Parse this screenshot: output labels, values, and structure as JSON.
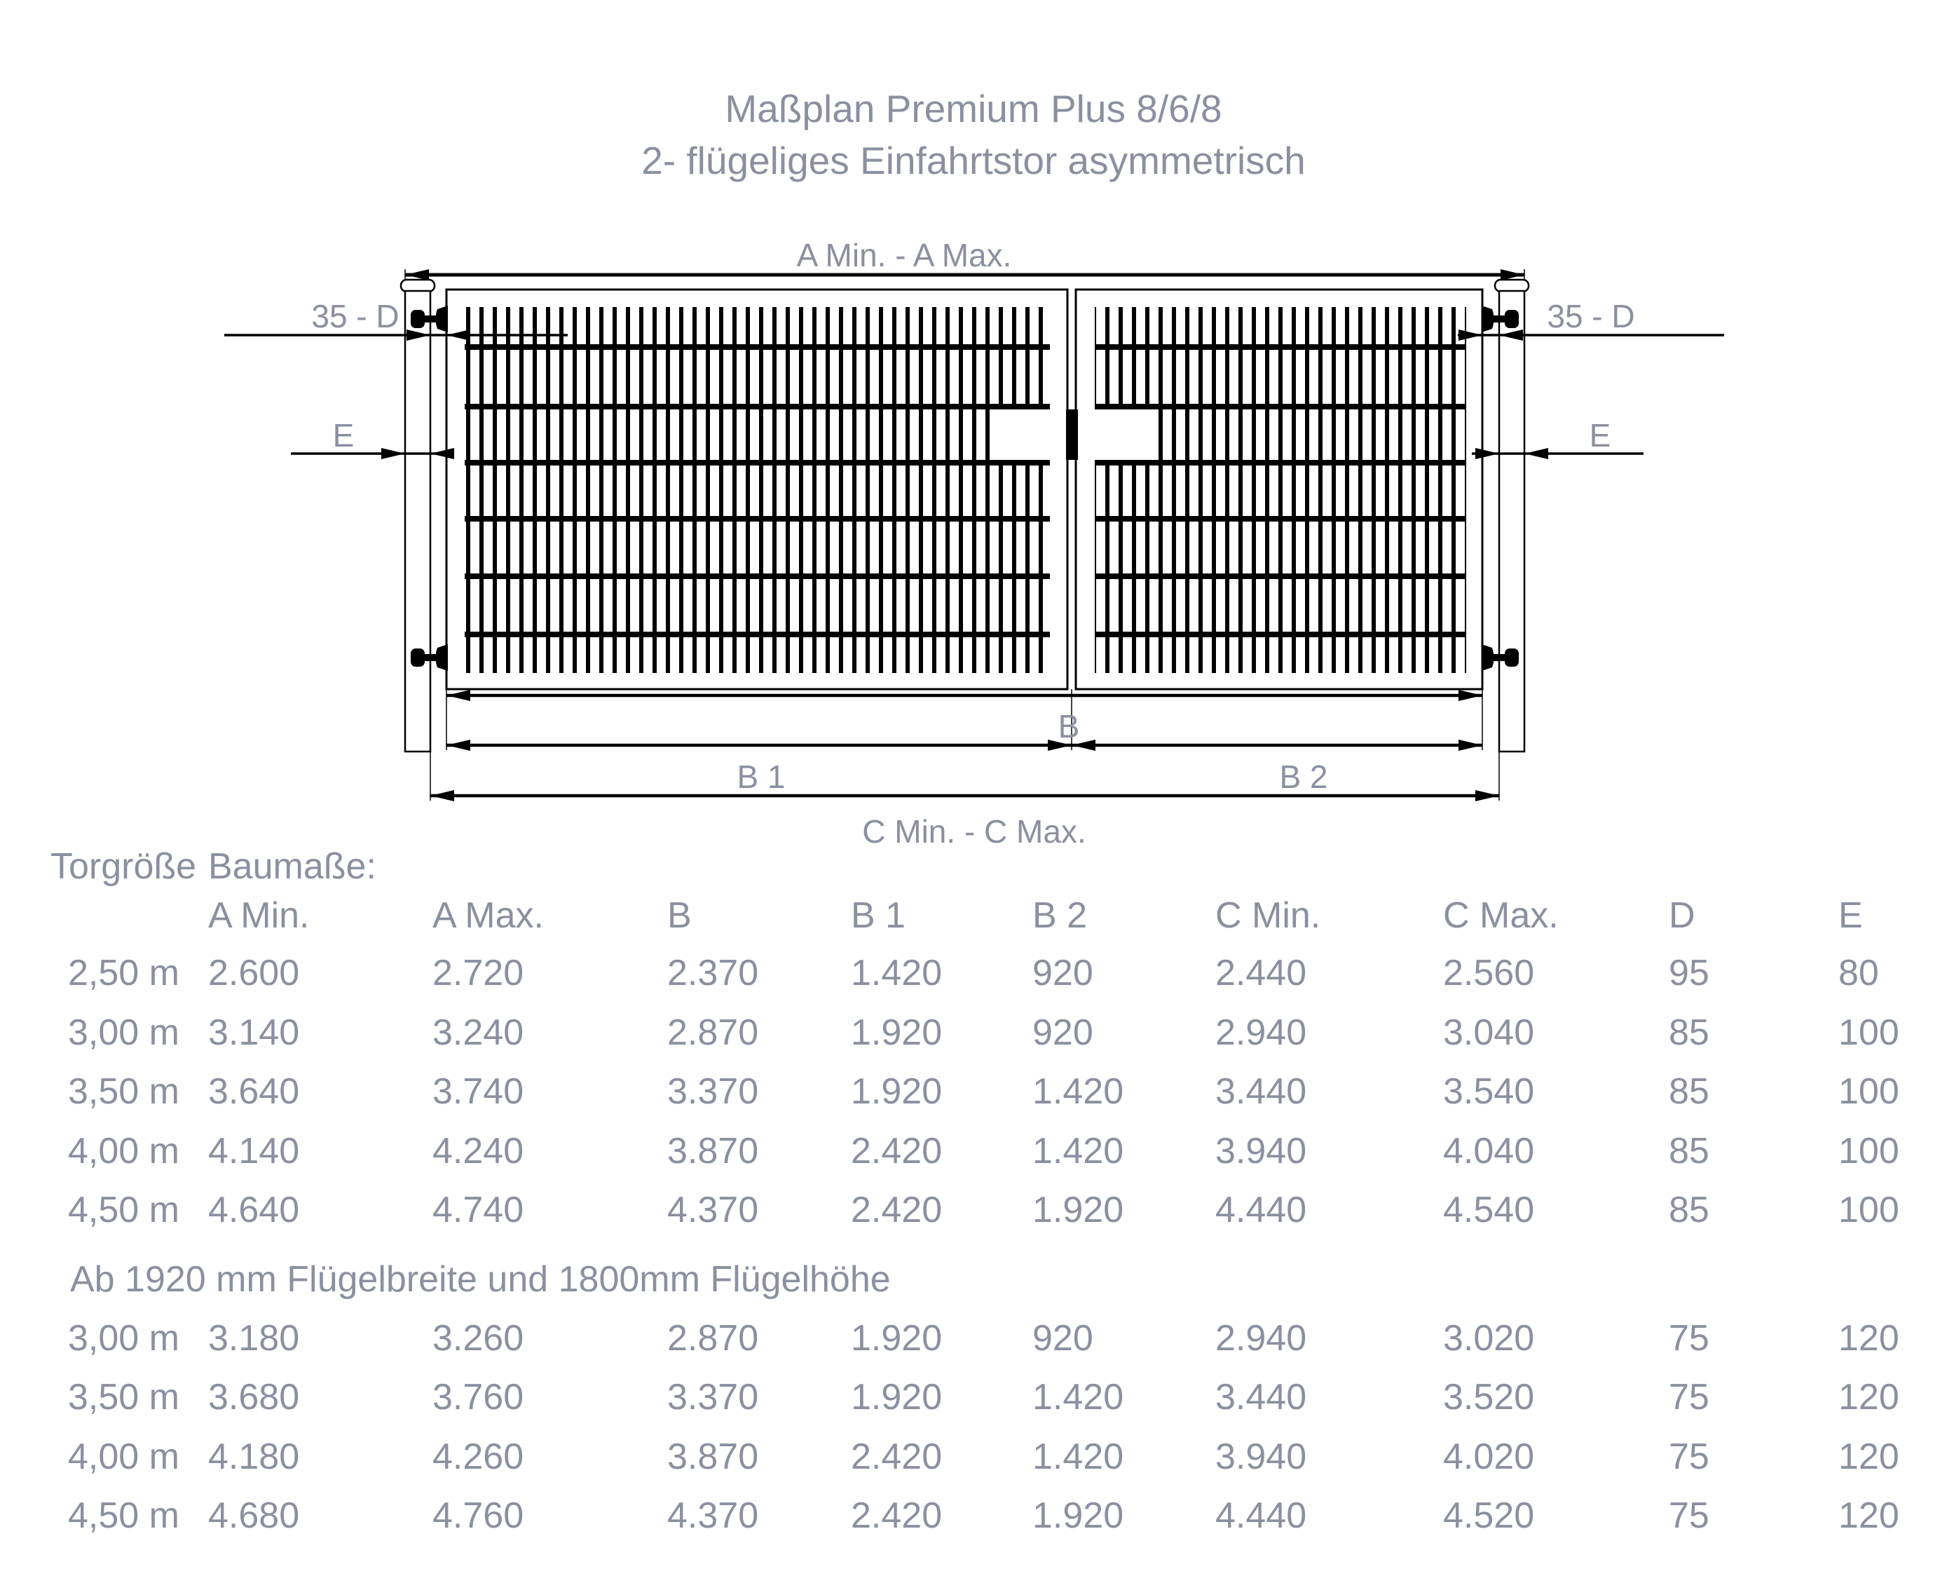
{
  "title": {
    "line1": "Maßplan Premium Plus 8/6/8",
    "line2": "2- flügeliges Einfahrtstor asymmetrisch"
  },
  "colors": {
    "label_text": "#8b90a0",
    "drawing_lines": "#000000"
  },
  "diagram": {
    "labels": {
      "a_span": "A Min. - A Max.",
      "d_left": "35 - D",
      "d_right": "35 - D",
      "e_left": "E",
      "e_right": "E",
      "b": "B",
      "b1": "B 1",
      "b2": "B 2",
      "c_span": "C Min. - C Max."
    }
  },
  "table": {
    "row_group_label": "Torgröße",
    "col_group_label": "Baumaße:",
    "columns": [
      "A Min.",
      "A Max.",
      "B",
      "B 1",
      "B 2",
      "C Min.",
      "C Max.",
      "D",
      "E"
    ],
    "rows": [
      [
        "2,50 m",
        "2.600",
        "2.720",
        "2.370",
        "1.420",
        "920",
        "2.440",
        "2.560",
        "95",
        "80"
      ],
      [
        "3,00 m",
        "3.140",
        "3.240",
        "2.870",
        "1.920",
        "920",
        "2.940",
        "3.040",
        "85",
        "100"
      ],
      [
        "3,50 m",
        "3.640",
        "3.740",
        "3.370",
        "1.920",
        "1.420",
        "3.440",
        "3.540",
        "85",
        "100"
      ],
      [
        "4,00 m",
        "4.140",
        "4.240",
        "3.870",
        "2.420",
        "1.420",
        "3.940",
        "4.040",
        "85",
        "100"
      ],
      [
        "4,50 m",
        "4.640",
        "4.740",
        "4.370",
        "2.420",
        "1.920",
        "4.440",
        "4.540",
        "85",
        "100"
      ]
    ],
    "note": "Ab 1920 mm Flügelbreite und 1800mm Flügelhöhe",
    "rows2": [
      [
        "3,00 m",
        "3.180",
        "3.260",
        "2.870",
        "1.920",
        "920",
        "2.940",
        "3.020",
        "75",
        "120"
      ],
      [
        "3,50 m",
        "3.680",
        "3.760",
        "3.370",
        "1.920",
        "1.420",
        "3.440",
        "3.520",
        "75",
        "120"
      ],
      [
        "4,00 m",
        "4.180",
        "4.260",
        "3.870",
        "2.420",
        "1.420",
        "3.940",
        "4.020",
        "75",
        "120"
      ],
      [
        "4,50 m",
        "4.680",
        "4.760",
        "4.370",
        "2.420",
        "1.920",
        "4.440",
        "4.520",
        "75",
        "120"
      ]
    ]
  }
}
